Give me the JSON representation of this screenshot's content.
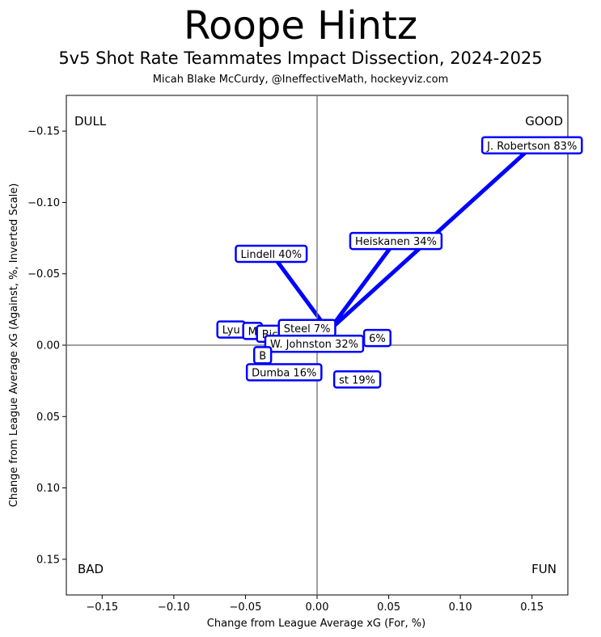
{
  "header": {
    "title": "Roope Hintz",
    "subtitle": "5v5 Shot Rate Teammates Impact Dissection, 2024-2025",
    "credit": "Micah Blake McCurdy, @IneffectiveMath, hockeyviz.com"
  },
  "chart_data": {
    "type": "scatter",
    "xlabel": "Change from League Average xG (For, %)",
    "ylabel": "Change from League Average xG (Against, %, Inverted Scale)",
    "xlim": [
      -0.175,
      0.175
    ],
    "ylim": [
      -0.175,
      0.175
    ],
    "y_inverted": true,
    "x_ticks": [
      -0.15,
      -0.1,
      -0.05,
      0.0,
      0.05,
      0.1,
      0.15
    ],
    "x_tick_labels": [
      "−0.15",
      "−0.10",
      "−0.05",
      "0.00",
      "0.05",
      "0.10",
      "0.15"
    ],
    "y_ticks": [
      -0.15,
      -0.1,
      -0.05,
      0.0,
      0.05,
      0.1,
      0.15
    ],
    "y_tick_labels": [
      "−0.15",
      "−0.10",
      "−0.05",
      "0.00",
      "0.05",
      "0.10",
      "0.15"
    ],
    "quadrant_labels": {
      "top_left": "DULL",
      "top_right": "GOOD",
      "bottom_left": "BAD",
      "bottom_right": "FUN"
    },
    "line_color": "#0000ff",
    "axis_line_color": "#808080",
    "teammates": [
      {
        "label": "J. Robertson 83%",
        "x": 0.15,
        "y": -0.14,
        "x_end": 0.15,
        "y_end": -0.14
      },
      {
        "label": "Heiskanen 34%",
        "x": 0.055,
        "y": -0.073,
        "x_end": 0.055,
        "y_end": -0.073
      },
      {
        "label": "Lindell 40%",
        "x": -0.032,
        "y": -0.064,
        "x_end": -0.032,
        "y_end": -0.064
      },
      {
        "label": "Lyu",
        "x": -0.06,
        "y": -0.011,
        "x_end": null,
        "y_end": null
      },
      {
        "label": "M",
        "x": -0.045,
        "y": -0.01,
        "x_end": null,
        "y_end": null
      },
      {
        "label": "Bic",
        "x": -0.033,
        "y": -0.008,
        "x_end": null,
        "y_end": null
      },
      {
        "label": "Steel 7%",
        "x": -0.007,
        "y": -0.012,
        "x_end": null,
        "y_end": null
      },
      {
        "label": "6%",
        "x": 0.042,
        "y": -0.005,
        "x_end": null,
        "y_end": null
      },
      {
        "label": "W. Johnston 32%",
        "x": -0.002,
        "y": -0.001,
        "x_end": null,
        "y_end": null
      },
      {
        "label": "B",
        "x": -0.038,
        "y": 0.007,
        "x_end": null,
        "y_end": null
      },
      {
        "label": "Dumba 16%",
        "x": -0.023,
        "y": 0.019,
        "x_end": null,
        "y_end": null
      },
      {
        "label": "st 19%",
        "x": 0.028,
        "y": 0.024,
        "x_end": null,
        "y_end": null
      }
    ]
  }
}
